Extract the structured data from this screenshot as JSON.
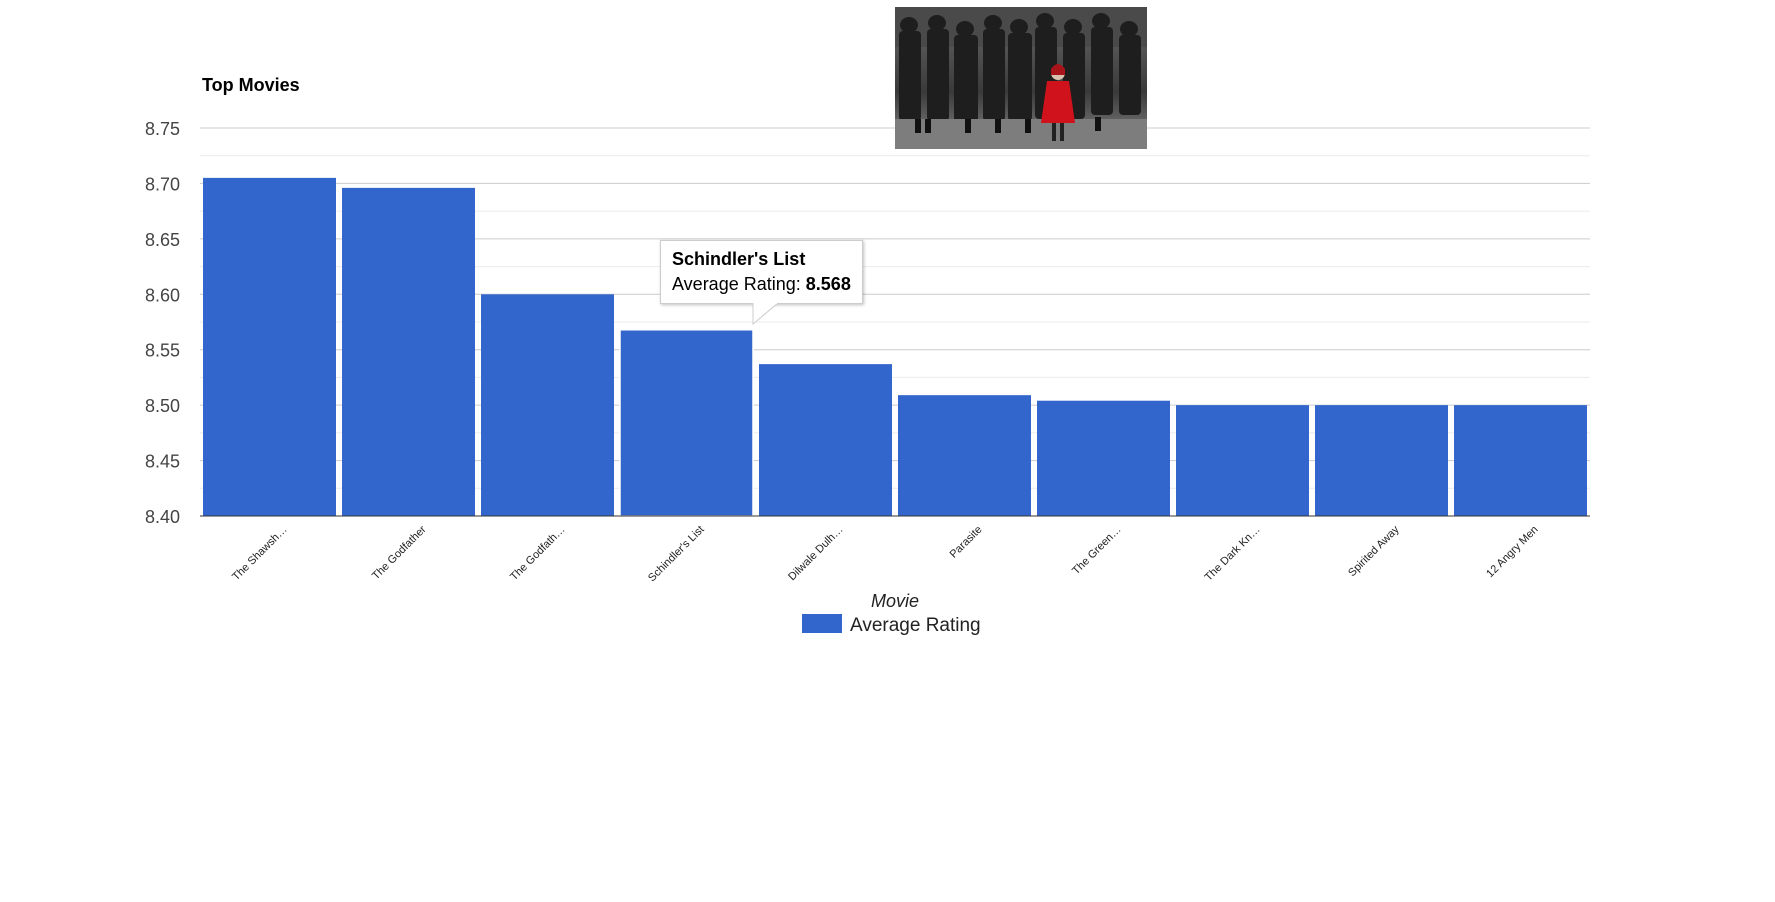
{
  "image": {
    "icon": "movie-still-thumbnail"
  },
  "tooltip": {
    "title": "Schindler's List",
    "label": "Average Rating:",
    "value": "8.568",
    "for_index": 3
  },
  "chart_data": {
    "type": "bar",
    "title": "Top Movies",
    "xlabel": "Movie",
    "ylabel": "",
    "ylim": [
      8.4,
      8.75
    ],
    "yticks": [
      "8.40",
      "8.45",
      "8.50",
      "8.55",
      "8.60",
      "8.65",
      "8.70",
      "8.75"
    ],
    "grid": true,
    "legend_position": "bottom",
    "categories": [
      "The Shawsh…",
      "The Godfather",
      "The Godfath…",
      "Schindler's List",
      "Dilwale Dulh…",
      "Parasite",
      "The Green…",
      "The Dark Kn…",
      "Spirited Away",
      "12 Angry Men"
    ],
    "series": [
      {
        "name": "Average Rating",
        "color": "#3366cc",
        "values": [
          8.705,
          8.696,
          8.6,
          8.568,
          8.537,
          8.509,
          8.504,
          8.5,
          8.5,
          8.5
        ]
      }
    ]
  }
}
